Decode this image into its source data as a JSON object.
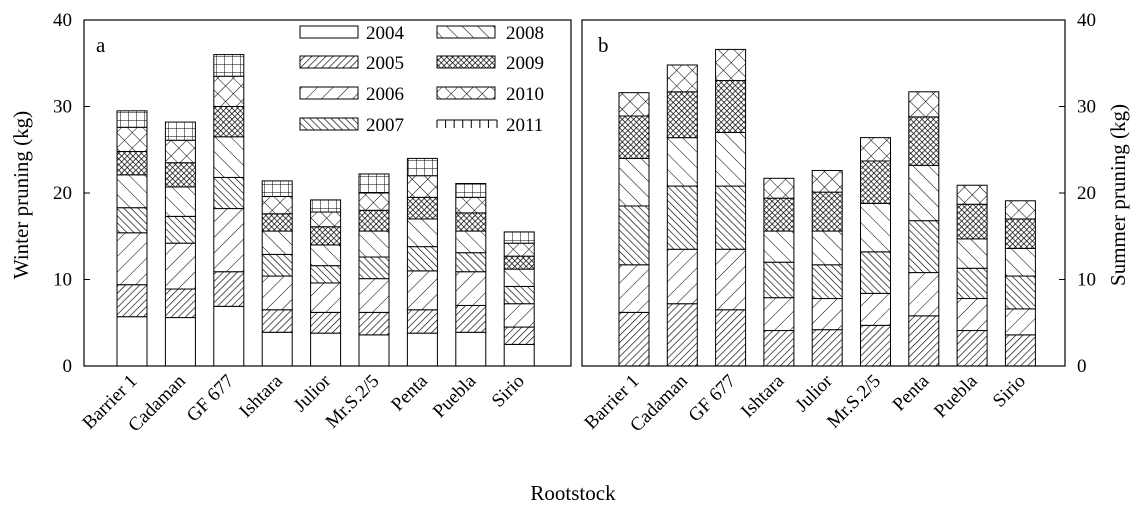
{
  "chart_data": [
    {
      "type": "bar",
      "stacked": true,
      "panel_label": "a",
      "ylabel": "Winter pruning (kg)",
      "xlabel": "Rootstock",
      "ylim": [
        0,
        40
      ],
      "yticks": [
        0,
        10,
        20,
        30,
        40
      ],
      "y_axis_side": "left",
      "legend": "top-right",
      "categories": [
        "Barrier 1",
        "Cadaman",
        "GF 677",
        "Ishtara",
        "Julior",
        "Mr.S.2/5",
        "Penta",
        "Puebla",
        "Sirio"
      ],
      "series": [
        {
          "name": "2004",
          "values": [
            5.7,
            5.6,
            6.9,
            3.9,
            3.8,
            3.6,
            3.8,
            3.9,
            2.5
          ]
        },
        {
          "name": "2005",
          "values": [
            3.7,
            3.3,
            4.0,
            2.6,
            2.4,
            2.6,
            2.7,
            3.1,
            2.0
          ]
        },
        {
          "name": "2006",
          "values": [
            6.0,
            5.3,
            7.3,
            3.9,
            3.4,
            3.9,
            4.5,
            3.9,
            2.7
          ]
        },
        {
          "name": "2007",
          "values": [
            2.9,
            3.1,
            3.6,
            2.5,
            2.0,
            2.5,
            2.8,
            2.2,
            2.0
          ]
        },
        {
          "name": "2008",
          "values": [
            3.8,
            3.4,
            4.7,
            2.7,
            2.4,
            3.0,
            3.2,
            2.5,
            2.0
          ]
        },
        {
          "name": "2009",
          "values": [
            2.7,
            2.8,
            3.5,
            2.0,
            2.1,
            2.4,
            2.5,
            2.1,
            1.5
          ]
        },
        {
          "name": "2010",
          "values": [
            2.8,
            2.6,
            3.5,
            2.0,
            1.7,
            2.0,
            2.5,
            1.8,
            1.5
          ]
        },
        {
          "name": "2011",
          "values": [
            1.9,
            2.1,
            2.5,
            1.8,
            1.4,
            2.2,
            2.0,
            1.6,
            1.3
          ]
        }
      ]
    },
    {
      "type": "bar",
      "stacked": true,
      "panel_label": "b",
      "ylabel": "Summer pruning (kg)",
      "xlabel": "Rootstock",
      "ylim": [
        0,
        40
      ],
      "yticks": [
        0,
        10,
        20,
        30,
        40
      ],
      "y_axis_side": "right",
      "categories": [
        "Barrier 1",
        "Cadaman",
        "GF 677",
        "Ishtara",
        "Julior",
        "Mr.S.2/5",
        "Penta",
        "Puebla",
        "Sirio"
      ],
      "series": [
        {
          "name": "2005",
          "values": [
            6.2,
            7.2,
            6.5,
            4.1,
            4.2,
            4.7,
            5.8,
            4.1,
            3.6
          ]
        },
        {
          "name": "2006",
          "values": [
            5.5,
            6.3,
            7.0,
            3.8,
            3.6,
            3.7,
            5.0,
            3.7,
            3.0
          ]
        },
        {
          "name": "2007",
          "values": [
            6.8,
            7.3,
            7.3,
            4.1,
            3.9,
            4.8,
            6.0,
            3.5,
            3.8
          ]
        },
        {
          "name": "2008",
          "values": [
            5.5,
            5.6,
            6.2,
            3.6,
            3.9,
            5.6,
            6.4,
            3.4,
            3.2
          ]
        },
        {
          "name": "2009",
          "values": [
            4.9,
            5.3,
            6.0,
            3.8,
            4.5,
            4.9,
            5.6,
            4.0,
            3.4
          ]
        },
        {
          "name": "2010",
          "values": [
            2.7,
            3.1,
            3.6,
            2.3,
            2.5,
            2.7,
            2.9,
            2.2,
            2.1
          ]
        }
      ]
    }
  ],
  "colors": {
    "ink": "#000000",
    "bar_fill": "#ffffff",
    "background": "#ffffff"
  },
  "pattern_map": {
    "2004": "blank",
    "2005": "dense-diagonal",
    "2006": "sparse-diagonal",
    "2007": "dense-backdiagonal",
    "2008": "sparse-backdiagonal",
    "2009": "dense-crosshatch",
    "2010": "sparse-crosshatch",
    "2011": "grid"
  }
}
